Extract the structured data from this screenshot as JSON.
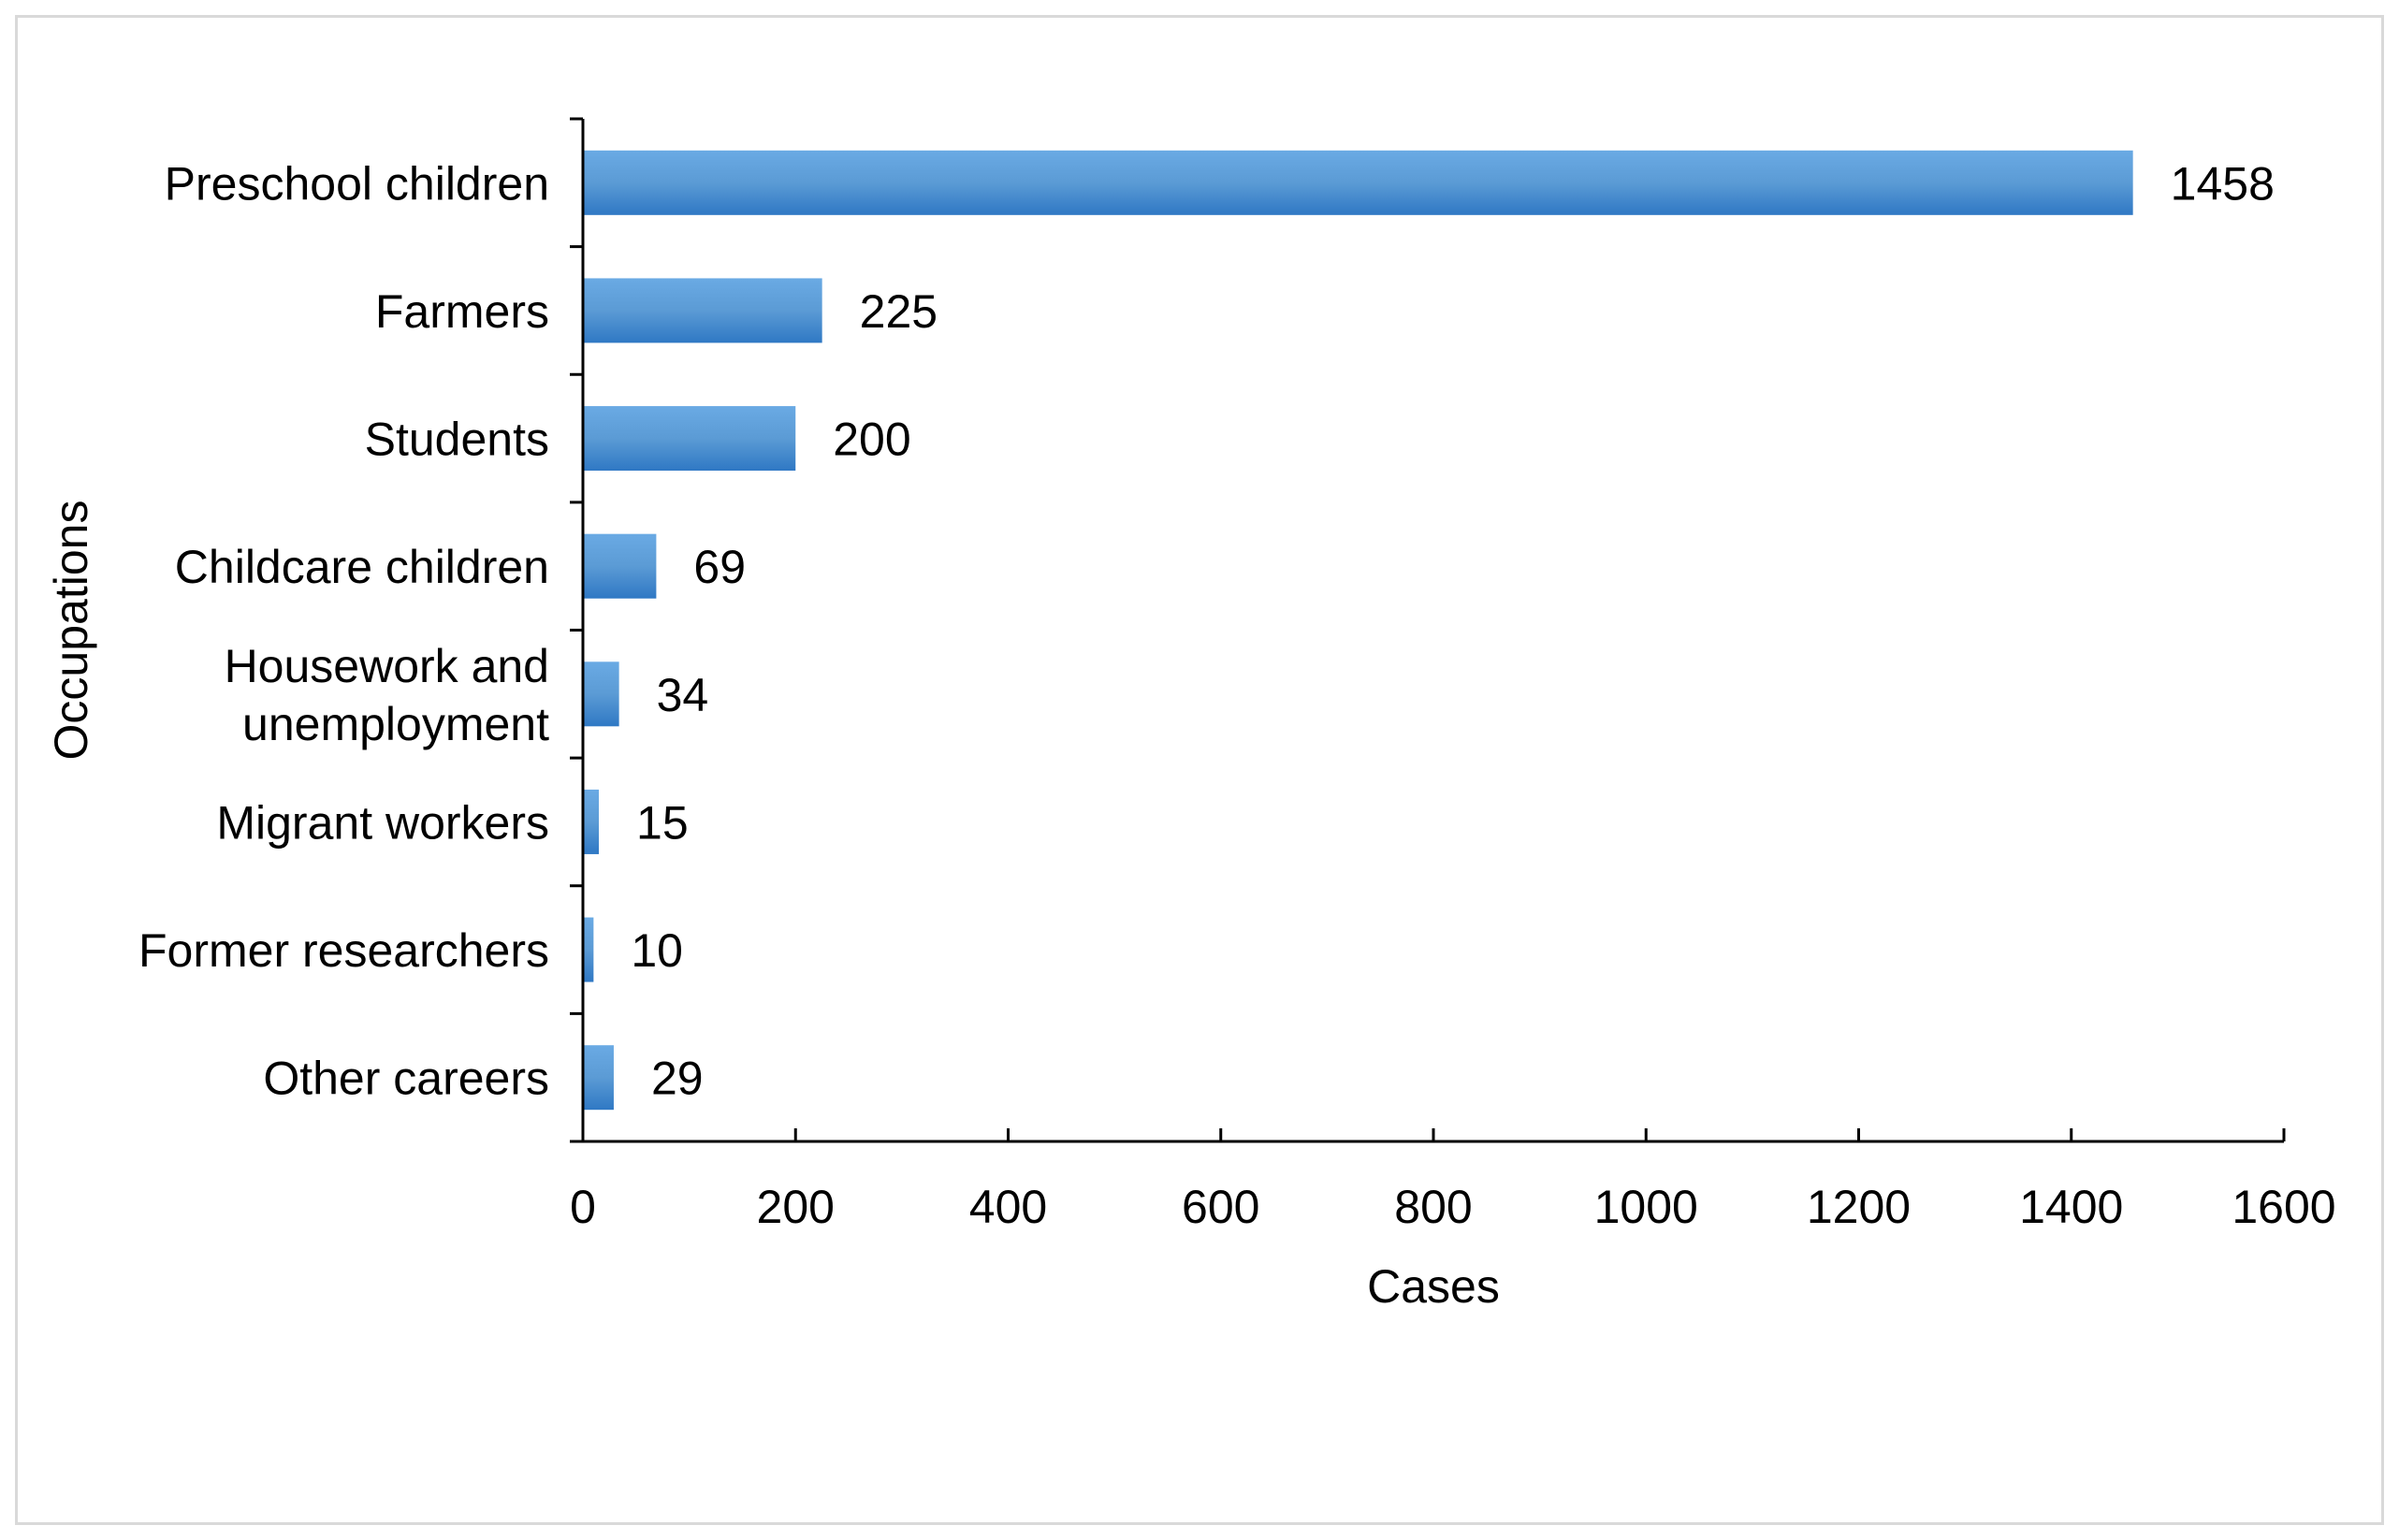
{
  "chart_data": {
    "type": "bar",
    "orientation": "horizontal",
    "categories": [
      [
        "Preschool children"
      ],
      [
        "Farmers"
      ],
      [
        "Students"
      ],
      [
        "Childcare children"
      ],
      [
        "Housework and",
        "unemployment"
      ],
      [
        "Migrant workers"
      ],
      [
        "Former researchers"
      ],
      [
        "Other careers"
      ]
    ],
    "values": [
      1458,
      225,
      200,
      69,
      34,
      15,
      10,
      29
    ],
    "data_labels": [
      "1458",
      "225",
      "200",
      "69",
      "34",
      "15",
      "10",
      "29"
    ],
    "xlabel": "Cases",
    "ylabel": "Occupations",
    "xlim": [
      0,
      1600
    ],
    "xticks": [
      "0",
      "200",
      "400",
      "600",
      "800",
      "1000",
      "1200",
      "1400",
      "1600"
    ],
    "bar_color": "#5b9bd5",
    "bar_color_light": "#6aaae4",
    "bar_color_dark": "#2f78c4",
    "grid": false,
    "legend": "none"
  }
}
